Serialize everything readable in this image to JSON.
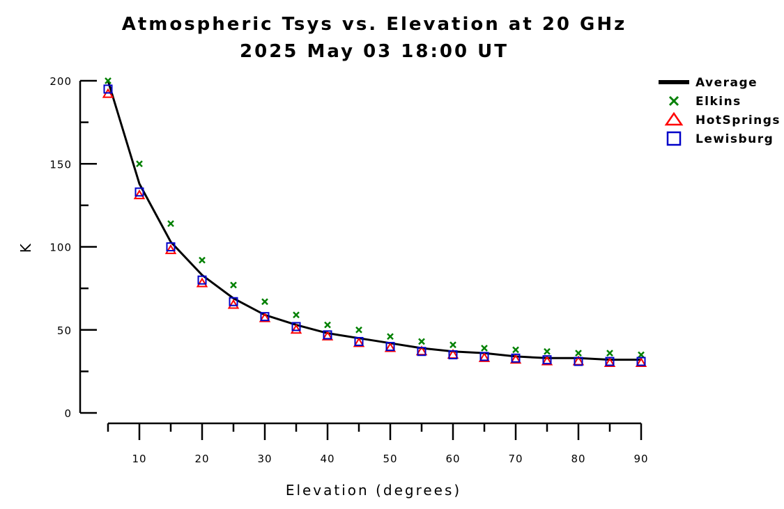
{
  "chart_data": {
    "type": "scatter",
    "title": "Atmospheric Tsys vs. Elevation at 20 GHz",
    "subtitle": "2025 May 03 18:00 UT",
    "xlabel": "Elevation (degrees)",
    "ylabel": "K",
    "xlim": [
      5,
      90
    ],
    "ylim": [
      0,
      200
    ],
    "x_ticks": [
      10,
      20,
      30,
      40,
      50,
      60,
      70,
      80,
      90
    ],
    "y_ticks": [
      0,
      50,
      100,
      150,
      200
    ],
    "legend_position": "top-right",
    "x": [
      5,
      10,
      15,
      20,
      25,
      30,
      35,
      40,
      45,
      50,
      55,
      60,
      65,
      70,
      75,
      80,
      85,
      90
    ],
    "series": [
      {
        "name": "Average",
        "style": "line",
        "color": "#000000",
        "values": [
          200,
          138,
          103,
          83,
          69,
          59,
          53,
          48,
          45,
          42,
          39,
          37,
          36,
          34,
          33,
          33,
          32,
          32
        ]
      },
      {
        "name": "Elkins",
        "style": "x-marker",
        "color": "#008000",
        "values": [
          200,
          150,
          114,
          92,
          77,
          67,
          59,
          53,
          50,
          46,
          43,
          41,
          39,
          38,
          37,
          36,
          36,
          35
        ]
      },
      {
        "name": "HotSprings",
        "style": "triangle-marker",
        "color": "#ff0000",
        "values": [
          192,
          131,
          98,
          78,
          65,
          57,
          50,
          46,
          42,
          39,
          37,
          35,
          33,
          32,
          31,
          31,
          30,
          30
        ]
      },
      {
        "name": "Lewisburg",
        "style": "square-marker",
        "color": "#0000c8",
        "values": [
          195,
          133,
          100,
          80,
          67,
          58,
          52,
          47,
          43,
          40,
          37,
          35,
          34,
          33,
          32,
          31,
          31,
          31
        ]
      }
    ]
  }
}
